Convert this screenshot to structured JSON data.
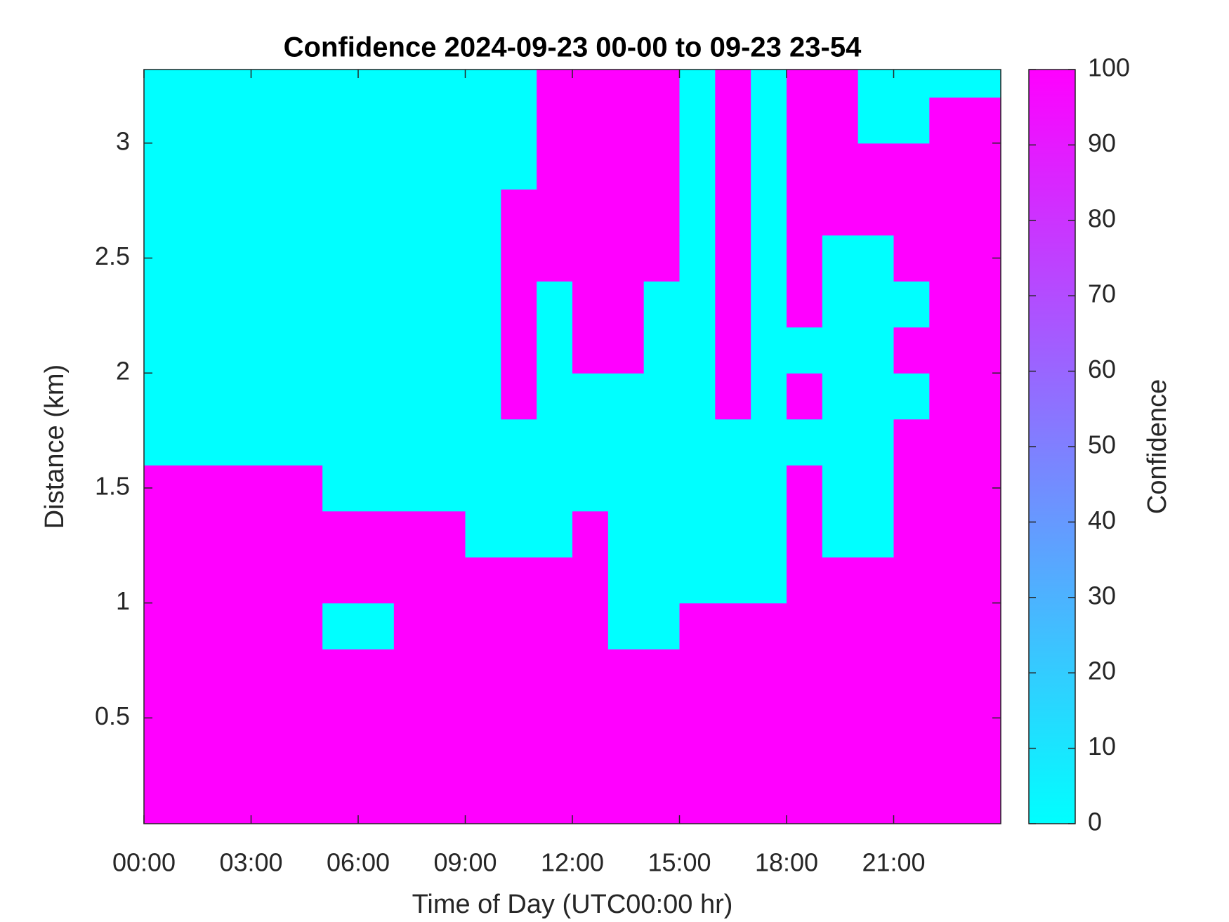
{
  "chart_data": {
    "type": "heatmap",
    "title": "Confidence 2024-09-23 00-00 to 09-23 23-54",
    "xlabel": "Time of Day (UTC00:00 hr)",
    "ylabel": "Distance (km)",
    "colorbar_label": "Confidence",
    "colormap": [
      "#00ffff",
      "#ff00ff"
    ],
    "xlim": [
      0,
      24
    ],
    "ylim": [
      0.04,
      3.32
    ],
    "zlim": [
      0,
      100
    ],
    "xticks": [
      {
        "value": 0,
        "label": "00:00"
      },
      {
        "value": 3,
        "label": "03:00"
      },
      {
        "value": 6,
        "label": "06:00"
      },
      {
        "value": 9,
        "label": "09:00"
      },
      {
        "value": 12,
        "label": "12:00"
      },
      {
        "value": 15,
        "label": "15:00"
      },
      {
        "value": 18,
        "label": "18:00"
      },
      {
        "value": 21,
        "label": "21:00"
      }
    ],
    "yticks": [
      0.5,
      1,
      1.5,
      2,
      2.5,
      3
    ],
    "zticks": [
      0,
      10,
      20,
      30,
      40,
      50,
      60,
      70,
      80,
      90,
      100
    ],
    "xbins": [
      0,
      1,
      2,
      3,
      4,
      5,
      6,
      7,
      8,
      9,
      10,
      11,
      12,
      13,
      14,
      15,
      16,
      17,
      18,
      19,
      20,
      21,
      22,
      23,
      24
    ],
    "ybins": [
      0.04,
      0.2,
      0.4,
      0.6,
      0.8,
      1.0,
      1.2,
      1.4,
      1.6,
      1.8,
      2.0,
      2.2,
      2.4,
      2.6,
      2.8,
      3.0,
      3.2,
      3.32
    ],
    "z": [
      [
        100,
        100,
        100,
        100,
        100,
        100,
        100,
        100,
        100,
        100,
        100,
        100,
        100,
        100,
        100,
        100,
        100,
        100,
        100,
        100,
        100,
        100,
        100,
        100
      ],
      [
        100,
        100,
        100,
        100,
        100,
        100,
        100,
        100,
        100,
        100,
        100,
        100,
        100,
        100,
        100,
        100,
        100,
        100,
        100,
        100,
        100,
        100,
        100,
        100
      ],
      [
        100,
        100,
        100,
        100,
        100,
        100,
        100,
        100,
        100,
        100,
        100,
        100,
        100,
        100,
        100,
        100,
        100,
        100,
        100,
        100,
        100,
        100,
        100,
        100
      ],
      [
        100,
        100,
        100,
        100,
        100,
        100,
        100,
        100,
        100,
        100,
        100,
        100,
        100,
        100,
        100,
        100,
        100,
        100,
        100,
        100,
        100,
        100,
        100,
        100
      ],
      [
        100,
        100,
        100,
        100,
        100,
        0,
        0,
        100,
        100,
        100,
        100,
        100,
        100,
        0,
        0,
        100,
        100,
        100,
        100,
        100,
        100,
        100,
        100,
        100
      ],
      [
        100,
        100,
        100,
        100,
        100,
        100,
        100,
        100,
        100,
        100,
        100,
        100,
        100,
        0,
        0,
        0,
        0,
        0,
        100,
        100,
        100,
        100,
        100,
        100
      ],
      [
        100,
        100,
        100,
        100,
        100,
        100,
        100,
        100,
        100,
        0,
        0,
        0,
        100,
        0,
        0,
        0,
        0,
        0,
        100,
        0,
        0,
        100,
        100,
        100
      ],
      [
        100,
        100,
        100,
        100,
        100,
        0,
        0,
        0,
        0,
        0,
        0,
        0,
        0,
        0,
        0,
        0,
        0,
        0,
        100,
        0,
        0,
        100,
        100,
        100
      ],
      [
        0,
        0,
        0,
        0,
        0,
        0,
        0,
        0,
        0,
        0,
        0,
        0,
        0,
        0,
        0,
        0,
        0,
        0,
        0,
        0,
        0,
        100,
        100,
        100
      ],
      [
        0,
        0,
        0,
        0,
        0,
        0,
        0,
        0,
        0,
        0,
        100,
        0,
        0,
        0,
        0,
        0,
        100,
        0,
        100,
        0,
        0,
        0,
        100,
        100
      ],
      [
        0,
        0,
        0,
        0,
        0,
        0,
        0,
        0,
        0,
        0,
        100,
        0,
        100,
        100,
        0,
        0,
        100,
        0,
        0,
        0,
        0,
        100,
        100,
        100
      ],
      [
        0,
        0,
        0,
        0,
        0,
        0,
        0,
        0,
        0,
        0,
        100,
        0,
        100,
        100,
        0,
        0,
        100,
        0,
        100,
        0,
        0,
        0,
        100,
        100
      ],
      [
        0,
        0,
        0,
        0,
        0,
        0,
        0,
        0,
        0,
        0,
        100,
        100,
        100,
        100,
        100,
        0,
        100,
        0,
        100,
        0,
        0,
        100,
        100,
        100
      ],
      [
        0,
        0,
        0,
        0,
        0,
        0,
        0,
        0,
        0,
        0,
        100,
        100,
        100,
        100,
        100,
        0,
        100,
        0,
        100,
        100,
        100,
        100,
        100,
        100
      ],
      [
        0,
        0,
        0,
        0,
        0,
        0,
        0,
        0,
        0,
        0,
        0,
        100,
        100,
        100,
        100,
        0,
        100,
        0,
        100,
        100,
        100,
        100,
        100,
        100
      ],
      [
        0,
        0,
        0,
        0,
        0,
        0,
        0,
        0,
        0,
        0,
        0,
        100,
        100,
        100,
        100,
        0,
        100,
        0,
        100,
        100,
        0,
        0,
        100,
        100
      ],
      [
        0,
        0,
        0,
        0,
        0,
        0,
        0,
        0,
        0,
        0,
        0,
        100,
        100,
        100,
        100,
        0,
        100,
        0,
        100,
        100,
        0,
        0,
        0,
        0
      ]
    ]
  }
}
